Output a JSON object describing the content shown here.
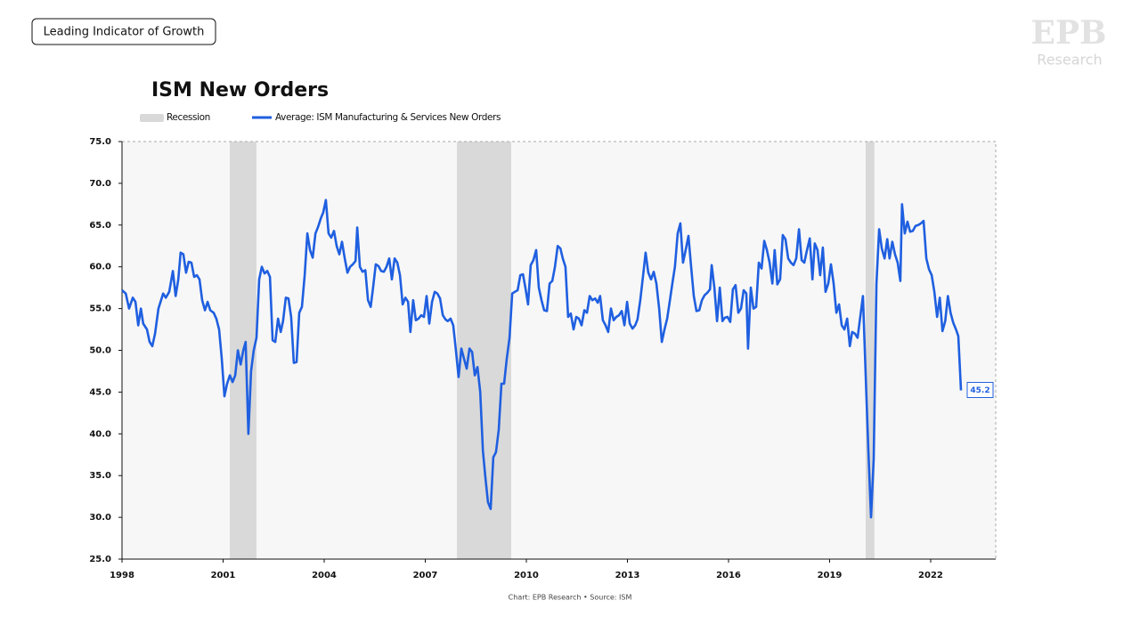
{
  "header": {
    "tag": "Leading Indicator of Growth",
    "logo": "EPB",
    "logo_sub": "Research"
  },
  "chart_data": {
    "type": "line",
    "title": "ISM New Orders",
    "source": "Chart: EPB Research  •  Source: ISM",
    "recession_label": "Recession",
    "recession_color": "#d9d9d9",
    "recessions": [
      [
        2001.2,
        2001.99
      ],
      [
        2007.94,
        2009.55
      ],
      [
        2020.07,
        2020.33
      ]
    ],
    "x": [
      1998.0,
      1998.11,
      1998.21,
      1998.32,
      1998.4,
      1998.48,
      1998.56,
      1998.63,
      1998.74,
      1998.82,
      1998.9,
      1998.98,
      1999.08,
      1999.22,
      1999.3,
      1999.4,
      1999.51,
      1999.59,
      1999.67,
      1999.74,
      1999.82,
      1999.9,
      1999.98,
      2000.06,
      2000.14,
      2000.22,
      2000.3,
      2000.38,
      2000.46,
      2000.54,
      2000.62,
      2000.72,
      2000.8,
      2000.88,
      2000.96,
      2001.04,
      2001.12,
      2001.2,
      2001.28,
      2001.36,
      2001.44,
      2001.52,
      2001.6,
      2001.67,
      2001.75,
      2001.83,
      2001.91,
      2001.99,
      2002.07,
      2002.15,
      2002.23,
      2002.31,
      2002.39,
      2002.47,
      2002.55,
      2002.63,
      2002.71,
      2002.78,
      2002.86,
      2002.94,
      2003.02,
      2003.1,
      2003.18,
      2003.26,
      2003.34,
      2003.42,
      2003.5,
      2003.58,
      2003.66,
      2003.74,
      2003.82,
      2003.9,
      2003.97,
      2004.05,
      2004.13,
      2004.21,
      2004.29,
      2004.37,
      2004.45,
      2004.53,
      2004.61,
      2004.69,
      2004.77,
      2004.85,
      2004.93,
      2004.98,
      2005.06,
      2005.14,
      2005.22,
      2005.3,
      2005.38,
      2005.45,
      2005.53,
      2005.61,
      2005.69,
      2005.77,
      2005.85,
      2005.93,
      2006.01,
      2006.09,
      2006.17,
      2006.25,
      2006.33,
      2006.41,
      2006.49,
      2006.56,
      2006.64,
      2006.72,
      2006.8,
      2006.88,
      2006.96,
      2007.04,
      2007.12,
      2007.2,
      2007.28,
      2007.36,
      2007.44,
      2007.52,
      2007.6,
      2007.67,
      2007.75,
      2007.83,
      2007.91,
      2007.99,
      2008.07,
      2008.15,
      2008.23,
      2008.31,
      2008.39,
      2008.47,
      2008.55,
      2008.63,
      2008.71,
      2008.78,
      2008.86,
      2008.94,
      2009.02,
      2009.1,
      2009.18,
      2009.26,
      2009.34,
      2009.42,
      2009.5,
      2009.58,
      2009.66,
      2009.74,
      2009.82,
      2009.9,
      2009.97,
      2010.05,
      2010.13,
      2010.21,
      2010.29,
      2010.37,
      2010.45,
      2010.53,
      2010.61,
      2010.69,
      2010.77,
      2010.85,
      2010.93,
      2011.01,
      2011.08,
      2011.16,
      2011.24,
      2011.32,
      2011.4,
      2011.48,
      2011.56,
      2011.64,
      2011.72,
      2011.8,
      2011.88,
      2011.96,
      2012.04,
      2012.12,
      2012.19,
      2012.27,
      2012.35,
      2012.43,
      2012.51,
      2012.59,
      2012.67,
      2012.75,
      2012.83,
      2012.91,
      2012.99,
      2013.07,
      2013.15,
      2013.23,
      2013.3,
      2013.38,
      2013.46,
      2013.54,
      2013.62,
      2013.7,
      2013.78,
      2013.86,
      2013.94,
      2014.02,
      2014.1,
      2014.18,
      2014.26,
      2014.34,
      2014.41,
      2014.49,
      2014.57,
      2014.65,
      2014.73,
      2014.81,
      2014.89,
      2014.97,
      2015.05,
      2015.13,
      2015.21,
      2015.29,
      2015.37,
      2015.45,
      2015.5,
      2015.58,
      2015.66,
      2015.74,
      2015.82,
      2015.89,
      2015.97,
      2016.05,
      2016.13,
      2016.21,
      2016.29,
      2016.37,
      2016.45,
      2016.53,
      2016.58,
      2016.66,
      2016.74,
      2016.82,
      2016.9,
      2016.98,
      2017.06,
      2017.14,
      2017.22,
      2017.3,
      2017.37,
      2017.45,
      2017.53,
      2017.61,
      2017.69,
      2017.77,
      2017.85,
      2017.93,
      2018.01,
      2018.09,
      2018.17,
      2018.25,
      2018.33,
      2018.41,
      2018.49,
      2018.56,
      2018.64,
      2018.72,
      2018.8,
      2018.88,
      2018.96,
      2019.04,
      2019.12,
      2019.2,
      2019.28,
      2019.36,
      2019.44,
      2019.52,
      2019.6,
      2019.67,
      2019.75,
      2019.83,
      2019.91,
      2019.99,
      2020.07,
      2020.15,
      2020.23,
      2020.31,
      2020.39,
      2020.47,
      2020.55,
      2020.63,
      2020.71,
      2020.78,
      2020.86,
      2020.94,
      2021.02,
      2021.1,
      2021.15,
      2021.23,
      2021.31,
      2021.39,
      2021.47,
      2021.55,
      2021.63,
      2021.71,
      2021.79,
      2021.87,
      2021.95,
      2022.03,
      2022.11,
      2022.19,
      2022.27,
      2022.35,
      2022.43,
      2022.51,
      2022.59,
      2022.67,
      2022.75,
      2022.82,
      2022.9
    ],
    "series": [
      {
        "name": "Average: ISM Manufacturing & Services New Orders",
        "color": "#1f5fe0",
        "values": [
          57.2,
          56.8,
          55.0,
          56.3,
          55.8,
          53.0,
          55.0,
          53.2,
          52.5,
          51.0,
          50.5,
          52.0,
          55.0,
          56.8,
          56.3,
          57.0,
          59.5,
          56.5,
          58.5,
          61.7,
          61.5,
          59.3,
          60.6,
          60.5,
          58.8,
          59.0,
          58.5,
          56.0,
          54.8,
          55.8,
          54.8,
          54.5,
          53.8,
          52.5,
          49.0,
          44.5,
          46.0,
          47.0,
          46.2,
          47.0,
          50.0,
          48.3,
          50.0,
          51.0,
          40.0,
          47.5,
          50.0,
          51.5,
          58.5,
          60.0,
          59.2,
          59.5,
          58.8,
          51.2,
          51.0,
          53.8,
          52.2,
          53.5,
          56.3,
          56.2,
          54.0,
          48.5,
          48.6,
          54.5,
          55.2,
          59.0,
          64.0,
          62.0,
          61.1,
          64.0,
          64.8,
          65.8,
          66.5,
          68.0,
          64.0,
          63.5,
          64.3,
          62.5,
          61.5,
          63.0,
          61.0,
          59.3,
          60.0,
          60.3,
          60.7,
          64.7,
          60.0,
          59.4,
          59.6,
          56.0,
          55.2,
          57.5,
          60.3,
          60.1,
          59.5,
          59.4,
          60.0,
          61.0,
          58.5,
          61.0,
          60.5,
          59.0,
          55.5,
          56.3,
          55.8,
          52.2,
          56.0,
          53.6,
          53.8,
          54.2,
          54.0,
          56.5,
          53.2,
          55.8,
          57.0,
          56.8,
          56.2,
          54.2,
          53.7,
          53.5,
          53.8,
          53.0,
          50.0,
          46.8,
          50.2,
          49.0,
          47.8,
          50.2,
          49.8,
          47.0,
          48.0,
          45.0,
          38.0,
          35.0,
          31.8,
          31.0,
          37.2,
          37.8,
          40.5,
          46.0,
          46.0,
          49.0,
          51.5,
          56.8,
          57.0,
          57.2,
          59.0,
          59.1,
          57.5,
          55.5,
          60.2,
          60.8,
          62.0,
          57.5,
          56.0,
          54.8,
          54.7,
          58.0,
          58.3,
          60.0,
          62.5,
          62.2,
          61.0,
          60.0,
          54.0,
          54.4,
          52.5,
          54.0,
          53.8,
          53.0,
          54.8,
          54.5,
          56.5,
          56.0,
          56.2,
          55.7,
          56.5,
          53.6,
          53.0,
          52.2,
          55.0,
          53.6,
          54.0,
          54.2,
          54.7,
          53.0,
          55.8,
          53.2,
          52.6,
          53.0,
          53.7,
          56.0,
          58.8,
          61.7,
          59.3,
          58.5,
          59.4,
          58.0,
          55.0,
          51.0,
          52.5,
          53.8,
          56.0,
          58.2,
          60.0,
          64.0,
          65.2,
          60.5,
          62.0,
          63.7,
          60.0,
          56.5,
          54.7,
          54.8,
          56.0,
          56.6,
          56.9,
          57.3,
          60.2,
          57.5,
          53.5,
          57.5,
          53.5,
          53.9,
          54.0,
          53.4,
          57.3,
          57.8,
          54.5,
          55.0,
          57.2,
          56.8,
          50.2,
          57.5,
          55.0,
          55.2,
          60.5,
          59.8,
          63.1,
          62.0,
          60.5,
          58.0,
          62.0,
          57.9,
          58.5,
          63.8,
          63.3,
          61.0,
          60.5,
          60.2,
          61.0,
          64.5,
          60.8,
          60.5,
          62.0,
          63.4,
          58.5,
          62.8,
          62.0,
          59.0,
          62.3,
          57.0,
          58.0,
          60.3,
          58.0,
          54.5,
          55.5,
          53.0,
          52.5,
          53.8,
          50.5,
          52.2,
          52.0,
          51.5,
          54.0,
          56.5,
          47.0,
          38.0,
          30.0,
          37.0,
          58.0,
          64.5,
          62.2,
          61.0,
          63.3,
          61.0,
          63.0,
          61.5,
          60.5,
          58.3,
          67.5,
          64.0,
          65.4,
          64.2,
          64.3,
          64.9,
          65.0,
          65.2,
          65.5,
          61.0,
          59.7,
          59.0,
          57.0,
          54.0,
          56.3,
          52.3,
          53.5,
          56.5,
          54.5,
          53.3,
          52.5,
          51.7,
          45.2
        ]
      }
    ],
    "xlim": [
      1998,
      2023.93
    ],
    "xticks": [
      1998,
      2001,
      2004,
      2007,
      2010,
      2013,
      2016,
      2019,
      2022
    ],
    "ylim": [
      25,
      75
    ],
    "yticks": [
      {
        "value": 25,
        "label": "25.0"
      },
      {
        "value": 30,
        "label": "30.0"
      },
      {
        "value": 35,
        "label": "35.0"
      },
      {
        "value": 40,
        "label": "40.0"
      },
      {
        "value": 45,
        "label": "45.0"
      },
      {
        "value": 50,
        "label": "50.0"
      },
      {
        "value": 55,
        "label": "55.0"
      },
      {
        "value": 60,
        "label": "60.0"
      },
      {
        "value": 65,
        "label": "65.0"
      },
      {
        "value": 70,
        "label": "70.0"
      },
      {
        "value": 75,
        "label": "75.0"
      }
    ],
    "grid": false
  }
}
